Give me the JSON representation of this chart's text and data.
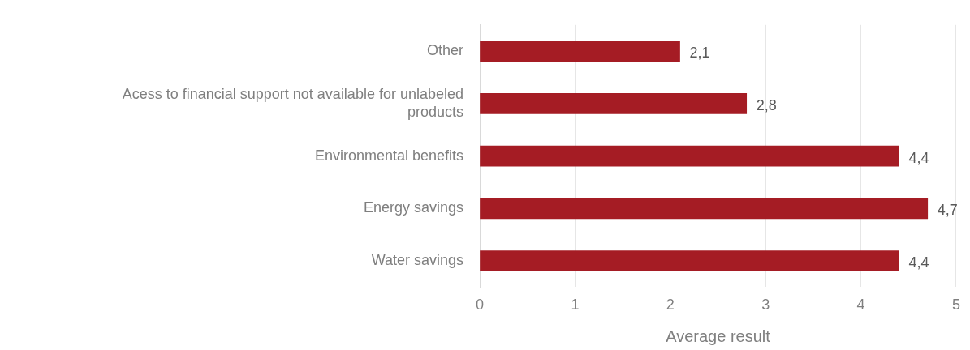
{
  "chart_data": {
    "type": "bar",
    "orientation": "horizontal",
    "xlabel": "Average result",
    "categories": [
      "Other",
      "Acess to financial support not available for unlabeled products",
      "Environmental benefits",
      "Energy savings",
      "Water savings"
    ],
    "values": [
      2.1,
      2.8,
      4.4,
      4.7,
      4.4
    ],
    "value_labels": [
      "2,1",
      "2,8",
      "4,4",
      "4,7",
      "4,4"
    ],
    "color": "#a51c24",
    "xlim": [
      0,
      5
    ],
    "xticks": [
      0,
      1,
      2,
      3,
      4,
      5
    ],
    "grid": "x",
    "legend": false
  }
}
